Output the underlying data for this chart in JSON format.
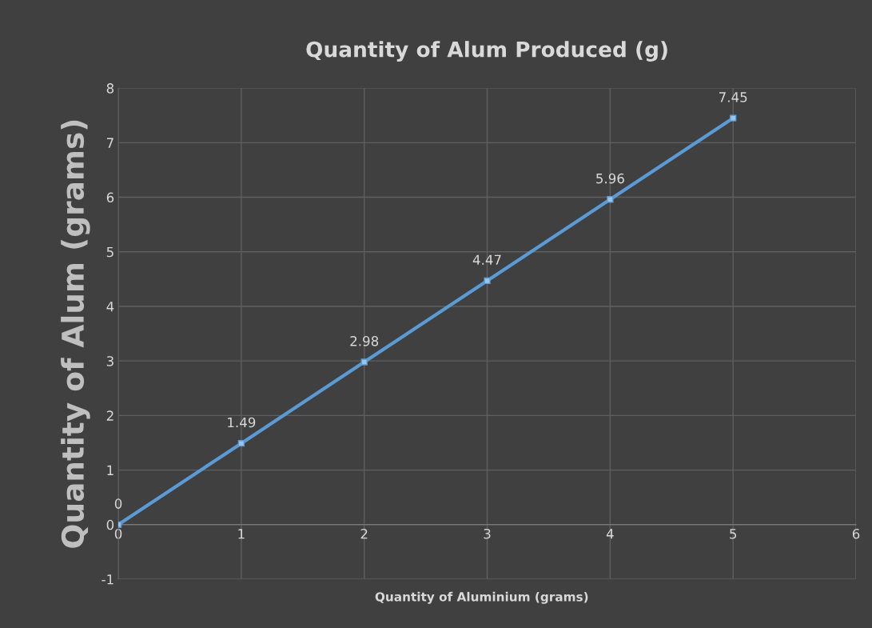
{
  "chart_data": {
    "type": "line",
    "title": "Quantity of Alum Produced (g)",
    "xlabel": "Quantity of Aluminium (grams)",
    "ylabel": "Quantity of Alum (grams)",
    "x": [
      0,
      1,
      2,
      3,
      4,
      5
    ],
    "series": [
      {
        "color": "#5b9bd5",
        "values": [
          0,
          1.49,
          2.98,
          4.47,
          5.96,
          7.45
        ]
      }
    ],
    "xlim": [
      0,
      6
    ],
    "xticks": [
      0,
      1,
      2,
      3,
      4,
      5,
      6
    ],
    "ylim": [
      -1,
      8
    ],
    "yticks": [
      -1,
      0,
      1,
      2,
      3,
      4,
      5,
      6,
      7,
      8
    ],
    "grid": true,
    "marker": "square",
    "line_style": "solid",
    "data_labels": true
  }
}
